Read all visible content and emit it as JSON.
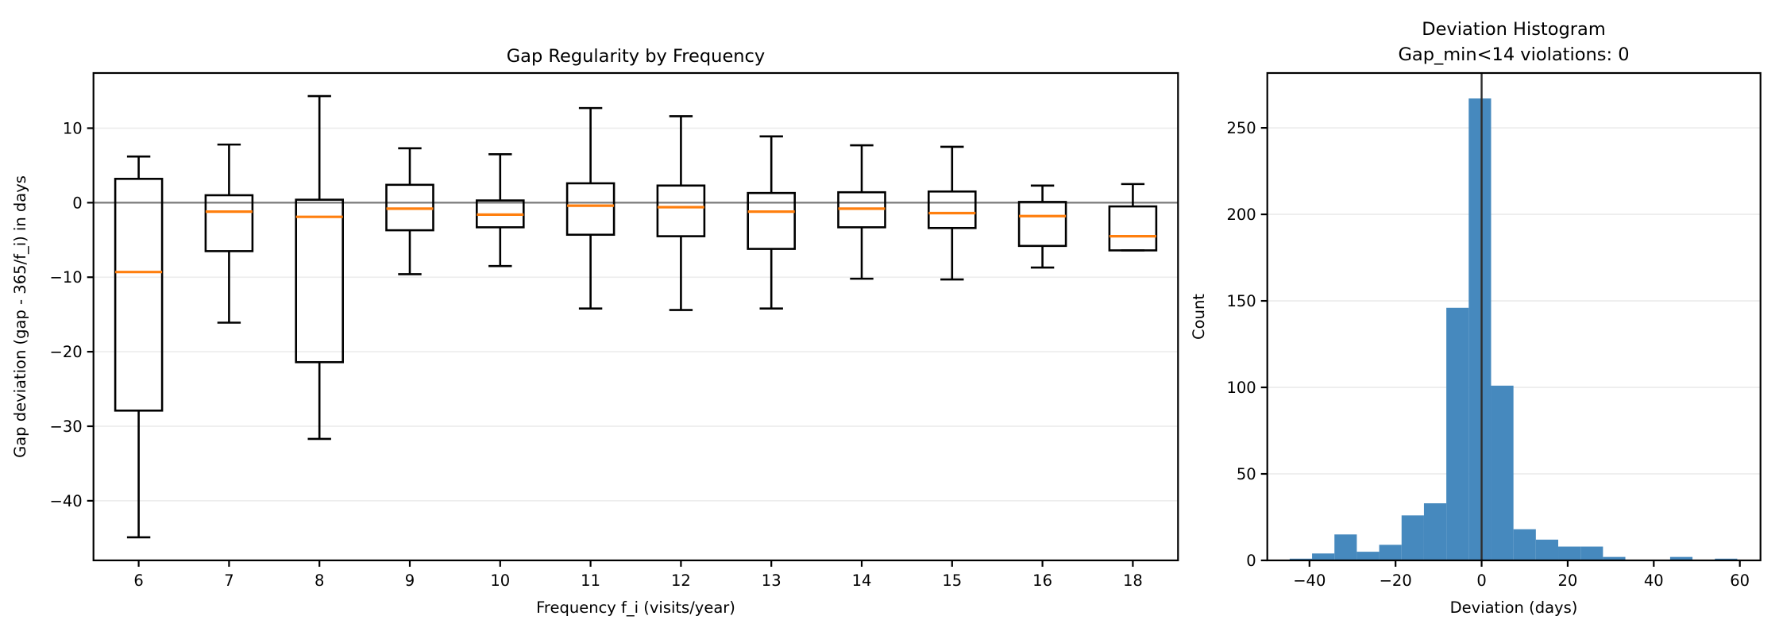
{
  "figure": {
    "background": "#ffffff"
  },
  "chart_data": [
    {
      "type": "boxplot",
      "title": "Gap Regularity by Frequency",
      "xlabel": "Frequency f_i (visits/year)",
      "ylabel": "Gap deviation (gap - 365/f_i) in days",
      "categories": [
        "6",
        "7",
        "8",
        "9",
        "10",
        "11",
        "12",
        "13",
        "14",
        "15",
        "16",
        "18"
      ],
      "yticks": [
        10,
        0,
        -10,
        -20,
        -30,
        -40
      ],
      "ylim": [
        -48,
        17.4
      ],
      "zero_line_y": 0,
      "grid": "horizontal",
      "boxes": [
        {
          "label": "6",
          "whislo": -44.9,
          "q1": -27.9,
          "med": -9.3,
          "q3": 3.2,
          "whishi": 6.2
        },
        {
          "label": "7",
          "whislo": -16.1,
          "q1": -6.5,
          "med": -1.2,
          "q3": 1.0,
          "whishi": 7.8
        },
        {
          "label": "8",
          "whislo": -31.7,
          "q1": -21.4,
          "med": -1.9,
          "q3": 0.4,
          "whishi": 14.3
        },
        {
          "label": "9",
          "whislo": -9.6,
          "q1": -3.7,
          "med": -0.8,
          "q3": 2.4,
          "whishi": 7.3
        },
        {
          "label": "10",
          "whislo": -8.5,
          "q1": -3.3,
          "med": -1.6,
          "q3": 0.3,
          "whishi": 6.5
        },
        {
          "label": "11",
          "whislo": -14.2,
          "q1": -4.3,
          "med": -0.4,
          "q3": 2.6,
          "whishi": 12.7
        },
        {
          "label": "12",
          "whislo": -14.4,
          "q1": -4.5,
          "med": -0.6,
          "q3": 2.3,
          "whishi": 11.6
        },
        {
          "label": "13",
          "whislo": -14.2,
          "q1": -6.2,
          "med": -1.2,
          "q3": 1.3,
          "whishi": 8.9
        },
        {
          "label": "14",
          "whislo": -10.2,
          "q1": -3.3,
          "med": -0.8,
          "q3": 1.4,
          "whishi": 7.7
        },
        {
          "label": "15",
          "whislo": -10.3,
          "q1": -3.4,
          "med": -1.4,
          "q3": 1.5,
          "whishi": 7.5
        },
        {
          "label": "16",
          "whislo": -8.7,
          "q1": -5.8,
          "med": -1.8,
          "q3": 0.1,
          "whishi": 2.3
        },
        {
          "label": "18",
          "whislo": -6.4,
          "q1": -6.4,
          "med": -4.5,
          "q3": -0.5,
          "whishi": 2.5
        }
      ],
      "colors": {
        "box_edge": "#000000",
        "median": "#ff7f0e",
        "zero_line": "#7f7f7f",
        "grid": "#ededed"
      }
    },
    {
      "type": "histogram",
      "title_line1": "Deviation Histogram",
      "title_line2": "Gap_min<14 violations: 0",
      "xlabel": "Deviation (days)",
      "ylabel": "Count",
      "bins": {
        "start": -44.6,
        "width": 5.2
      },
      "counts": [
        1,
        4,
        15,
        5,
        9,
        26,
        33,
        146,
        267,
        101,
        18,
        12,
        8,
        8,
        2,
        0,
        0,
        2,
        0,
        1
      ],
      "xticks": [
        -40,
        -20,
        0,
        20,
        40,
        60
      ],
      "yticks": [
        0,
        50,
        100,
        150,
        200,
        250
      ],
      "xlim": [
        -49.8,
        64.8
      ],
      "ylim": [
        0,
        281.7
      ],
      "vline_x": 0,
      "grid": "horizontal",
      "colors": {
        "bar": "#4689be",
        "vline": "#2e2e2e",
        "grid": "#ededed"
      }
    }
  ]
}
